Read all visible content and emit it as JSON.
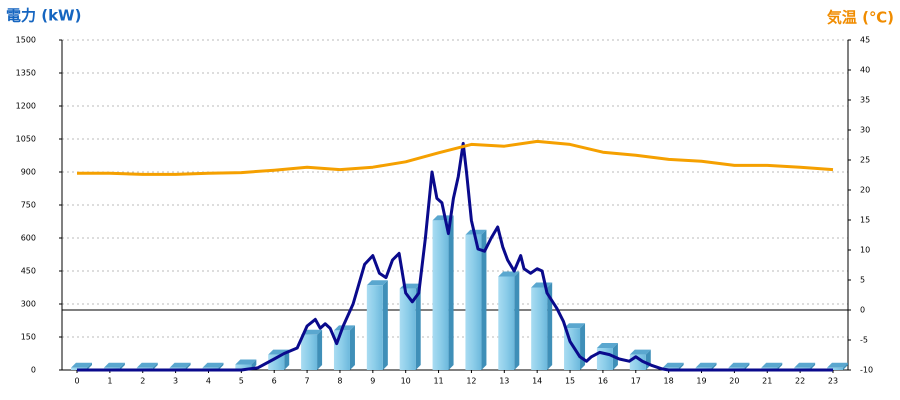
{
  "chart_data": {
    "type": "combo",
    "ylabel": "電力 (kW)",
    "y2label": "気温 (℃)",
    "categories": [
      "0",
      "1",
      "2",
      "3",
      "4",
      "5",
      "6",
      "7",
      "8",
      "9",
      "10",
      "11",
      "12",
      "13",
      "14",
      "15",
      "16",
      "17",
      "18",
      "19",
      "20",
      "21",
      "22",
      "23"
    ],
    "ylim": [
      0,
      1500
    ],
    "yticks": [
      0,
      150,
      300,
      450,
      600,
      750,
      900,
      1050,
      1200,
      1350,
      1500
    ],
    "y2lim": [
      -10,
      45
    ],
    "y2ticks": [
      -10,
      -5,
      0,
      5,
      10,
      15,
      20,
      25,
      30,
      35,
      40,
      45
    ],
    "grid": true,
    "reference_line": {
      "axis": "y2",
      "value": 0
    },
    "series": [
      {
        "type": "bar",
        "color": "#8ccde9",
        "values": [
          10,
          10,
          10,
          10,
          10,
          25,
          70,
          160,
          180,
          385,
          370,
          680,
          615,
          425,
          375,
          190,
          100,
          70,
          10,
          10,
          10,
          10,
          10,
          10
        ]
      },
      {
        "type": "line",
        "color": "#0a0a8c",
        "x": [
          0,
          1,
          2,
          3,
          4,
          5,
          5.5,
          6,
          6.3,
          6.7,
          7,
          7.25,
          7.4,
          7.55,
          7.7,
          7.9,
          8.1,
          8.4,
          8.75,
          9,
          9.2,
          9.4,
          9.6,
          9.8,
          10,
          10.2,
          10.4,
          10.6,
          10.8,
          10.95,
          11.1,
          11.3,
          11.45,
          11.6,
          11.75,
          11.85,
          12,
          12.2,
          12.4,
          12.6,
          12.8,
          12.95,
          13.1,
          13.3,
          13.5,
          13.6,
          13.8,
          14,
          14.15,
          14.3,
          14.6,
          14.8,
          15,
          15.3,
          15.5,
          15.65,
          15.9,
          16.2,
          16.5,
          16.8,
          17,
          17.2,
          17.5,
          17.8,
          18,
          19,
          20,
          21,
          22,
          23
        ],
        "values": [
          0,
          0,
          0,
          0,
          0,
          0,
          10,
          50,
          75,
          100,
          200,
          230,
          190,
          210,
          190,
          120,
          200,
          300,
          480,
          520,
          440,
          420,
          500,
          530,
          350,
          310,
          350,
          600,
          900,
          780,
          760,
          620,
          780,
          880,
          1030,
          900,
          680,
          550,
          540,
          600,
          650,
          560,
          500,
          450,
          520,
          460,
          440,
          460,
          450,
          350,
          280,
          220,
          130,
          60,
          40,
          60,
          80,
          70,
          50,
          40,
          60,
          40,
          20,
          5,
          0,
          0,
          0,
          0,
          0,
          0
        ]
      },
      {
        "type": "line",
        "axis": "y2",
        "color": "#f5a000",
        "values": [
          22.8,
          22.8,
          22.6,
          22.6,
          22.8,
          22.9,
          23.3,
          23.8,
          23.4,
          23.8,
          24.7,
          26.2,
          27.6,
          27.3,
          28.1,
          27.6,
          26.3,
          25.8,
          25.1,
          24.8,
          24.1,
          24.1,
          23.8,
          23.4
        ]
      }
    ]
  }
}
